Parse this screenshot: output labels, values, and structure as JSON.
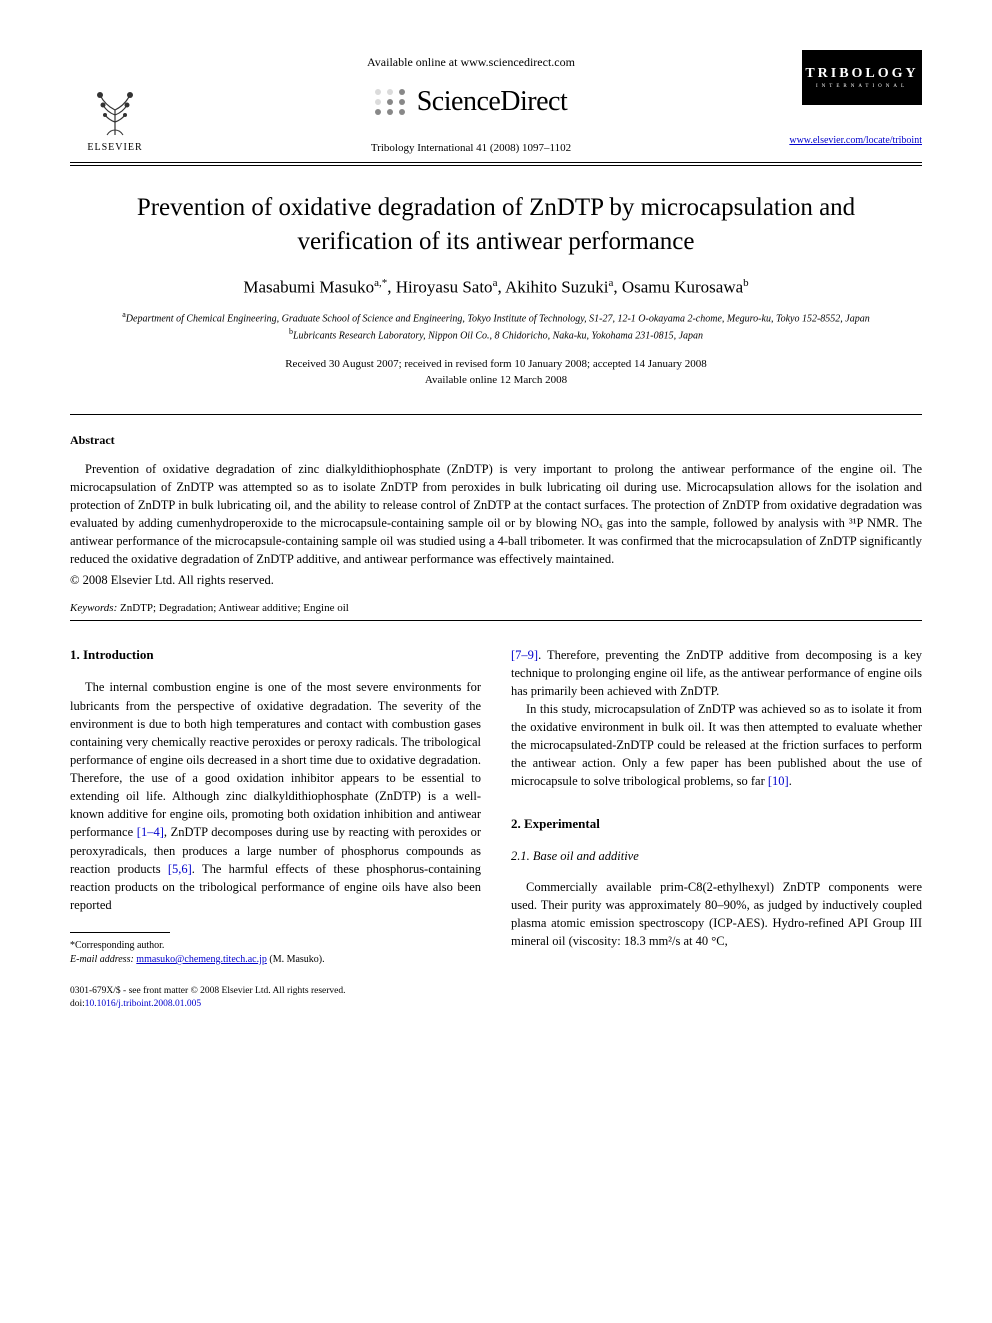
{
  "header": {
    "available_online": "Available online at www.sciencedirect.com",
    "sciencedirect": "ScienceDirect",
    "elsevier": "ELSEVIER",
    "journal_ref": "Tribology International 41 (2008) 1097–1102",
    "tribology_main": "TRIBOLOGY",
    "tribology_sub": "INTERNATIONAL",
    "journal_url": "www.elsevier.com/locate/triboint"
  },
  "title": "Prevention of oxidative degradation of ZnDTP by microcapsulation and verification of its antiwear performance",
  "authors_html": "Masabumi Masuko<sup>a,*</sup>, Hiroyasu Sato<sup>a</sup>, Akihito Suzuki<sup>a</sup>, Osamu Kurosawa<sup>b</sup>",
  "affiliations": {
    "a": "Department of Chemical Engineering, Graduate School of Science and Engineering, Tokyo Institute of Technology, S1-27, 12-1 O-okayama 2-chome, Meguro-ku, Tokyo 152-8552, Japan",
    "b": "Lubricants Research Laboratory, Nippon Oil Co., 8 Chidoricho, Naka-ku, Yokohama 231-0815, Japan"
  },
  "dates": {
    "received": "Received 30 August 2007; received in revised form 10 January 2008; accepted 14 January 2008",
    "online": "Available online 12 March 2008"
  },
  "abstract": {
    "label": "Abstract",
    "text": "Prevention of oxidative degradation of zinc dialkyldithiophosphate (ZnDTP) is very important to prolong the antiwear performance of the engine oil. The microcapsulation of ZnDTP was attempted so as to isolate ZnDTP from peroxides in bulk lubricating oil during use. Microcapsulation allows for the isolation and protection of ZnDTP in bulk lubricating oil, and the ability to release control of ZnDTP at the contact surfaces. The protection of ZnDTP from oxidative degradation was evaluated by adding cumenhydroperoxide to the microcapsule-containing sample oil or by blowing NOₓ gas into the sample, followed by analysis with ³¹P NMR. The antiwear performance of the microcapsule-containing sample oil was studied using a 4-ball tribometer. It was confirmed that the microcapsulation of ZnDTP significantly reduced the oxidative degradation of ZnDTP additive, and antiwear performance was effectively maintained.",
    "copyright": "© 2008 Elsevier Ltd. All rights reserved."
  },
  "keywords": {
    "label": "Keywords:",
    "text": "ZnDTP; Degradation; Antiwear additive; Engine oil"
  },
  "sections": {
    "intro_heading": "1.  Introduction",
    "intro_p1_a": "The internal combustion engine is one of the most severe environments for lubricants from the perspective of oxidative degradation. The severity of the environment is due to both high temperatures and contact with combustion gases containing very chemically reactive peroxides or peroxy radicals. The tribological performance of engine oils decreased in a short time due to oxidative degradation. Therefore, the use of a good oxidation inhibitor appears to be essential to extending oil life. Although zinc dialkyldithiophosphate (ZnDTP) is a well-known additive for engine oils, promoting both oxidation inhibition and antiwear performance ",
    "intro_ref1": "[1–4]",
    "intro_p1_b": ", ZnDTP decomposes during use by reacting with peroxides or peroxyradicals, then produces a large number of phosphorus compounds as reaction products ",
    "intro_ref2": "[5,6]",
    "intro_p1_c": ". The harmful effects of these phosphorus-containing reaction products on the tribological performance of engine oils have also been reported ",
    "intro_ref3": "[7–9]",
    "intro_p1_d": ". Therefore, preventing the ZnDTP additive from decomposing is a key technique to prolonging engine oil life, as the antiwear performance of engine oils has primarily been achieved with ZnDTP.",
    "intro_p2_a": "In this study, microcapsulation of ZnDTP was achieved so as to isolate it from the oxidative environment in bulk oil. It was then attempted to evaluate whether the microcapsulated-ZnDTP could be released at the friction surfaces to perform the antiwear action. Only a few paper has been published about the use of microcapsule to solve tribological problems, so far ",
    "intro_ref4": "[10]",
    "intro_p2_b": ".",
    "exp_heading": "2.  Experimental",
    "exp_sub1": "2.1.  Base oil and additive",
    "exp_p1": "Commercially available prim-C8(2-ethylhexyl) ZnDTP components were used. Their purity was approximately 80–90%, as judged by inductively coupled plasma atomic emission spectroscopy (ICP-AES). Hydro-refined API Group III mineral oil (viscosity: 18.3 mm²/s at 40 °C,"
  },
  "footnote": {
    "corr": "*Corresponding author.",
    "email_label": "E-mail address:",
    "email": "mmasuko@chemeng.titech.ac.jp",
    "email_name": "(M. Masuko)."
  },
  "footer": {
    "line1": "0301-679X/$ - see front matter © 2008 Elsevier Ltd. All rights reserved.",
    "doi_label": "doi:",
    "doi": "10.1016/j.triboint.2008.01.005"
  }
}
